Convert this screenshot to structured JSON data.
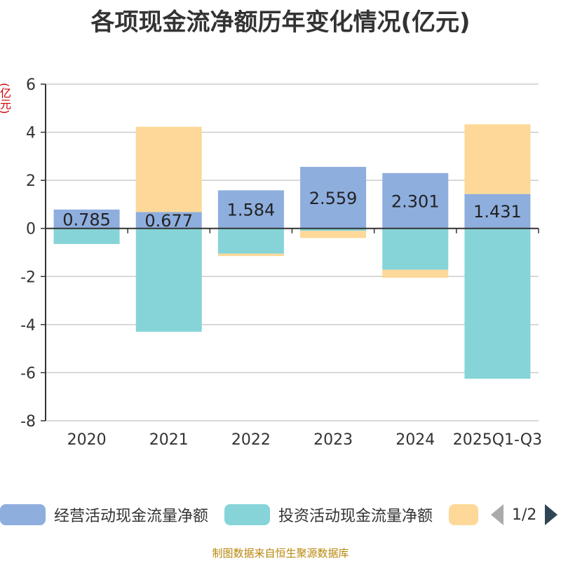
{
  "chart_data": {
    "type": "bar",
    "stacked": true,
    "title": "各项现金流净额历年变化情况(亿元)",
    "ylabel": "(亿元)",
    "ylim": [
      -8,
      6
    ],
    "yticks": [
      6,
      4,
      2,
      0,
      -2,
      -4,
      -6,
      -8
    ],
    "categories": [
      "2020",
      "2021",
      "2022",
      "2023",
      "2024",
      "2025Q1-Q3"
    ],
    "series": [
      {
        "name": "经营活动现金流量净额",
        "color": "#8eaede",
        "values": [
          0.785,
          0.677,
          1.584,
          2.559,
          2.301,
          1.431
        ],
        "labels": [
          "0.785",
          "0.677",
          "1.584",
          "2.559",
          "2.301",
          "1.431"
        ]
      },
      {
        "name": "投资活动现金流量净额",
        "color": "#86d4d8",
        "values": [
          -0.65,
          -4.3,
          -1.05,
          -0.1,
          -1.72,
          -6.25
        ]
      },
      {
        "name": "",
        "color": "#fdd898",
        "values": [
          0,
          3.55,
          -0.1,
          -0.3,
          -0.33,
          2.9
        ]
      }
    ]
  },
  "legend": {
    "items": [
      "经营活动现金流量净额",
      "投资活动现金流量净额",
      ""
    ],
    "page": "1/2"
  },
  "source": "制图数据来自恒生聚源数据库"
}
